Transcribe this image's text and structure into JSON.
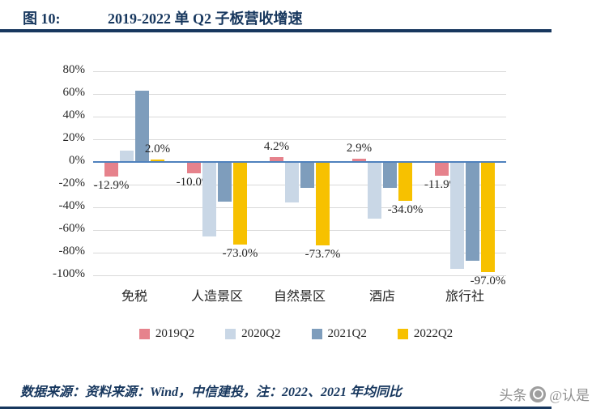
{
  "header": {
    "figure_label": "图 10:",
    "title": "2019-2022 单 Q2 子板营收增速"
  },
  "chart_data": {
    "type": "bar",
    "title": "2019-2022 单 Q2 子板营收增速",
    "categories": [
      "免税",
      "人造景区",
      "自然景区",
      "酒店",
      "旅行社"
    ],
    "series": [
      {
        "name": "2019Q2",
        "color": "#E6828C",
        "values": [
          -12.9,
          -10.0,
          4.2,
          2.9,
          -11.9
        ],
        "labeled": true
      },
      {
        "name": "2020Q2",
        "color": "#C9D7E6",
        "values": [
          10,
          -66,
          -36,
          -50,
          -94
        ],
        "labeled": false
      },
      {
        "name": "2021Q2",
        "color": "#7E9DBC",
        "values": [
          63,
          -35,
          -23,
          -23,
          -87
        ],
        "labeled": false
      },
      {
        "name": "2022Q2",
        "color": "#F7C100",
        "values": [
          2.0,
          -73.0,
          -73.7,
          -34.0,
          -97.0
        ],
        "labeled": true
      }
    ],
    "ylim": [
      -100,
      80
    ],
    "ytick_step": 20,
    "ytick_suffix": "%",
    "grid": true,
    "legend_position": "bottom",
    "zero_line_color": "#4F81BD",
    "xlabel": "",
    "ylabel": ""
  },
  "footer": {
    "source_text": "数据来源：资料来源：Wind，中信建投，注：2022、2021 年均同比"
  },
  "watermark": {
    "brand": "头条",
    "handle": "@认是"
  },
  "colors": {
    "accent_navy": "#17375E",
    "grid": "#D9D9D9",
    "text": "#262626",
    "watermark_gray": "#8F8F8F"
  }
}
